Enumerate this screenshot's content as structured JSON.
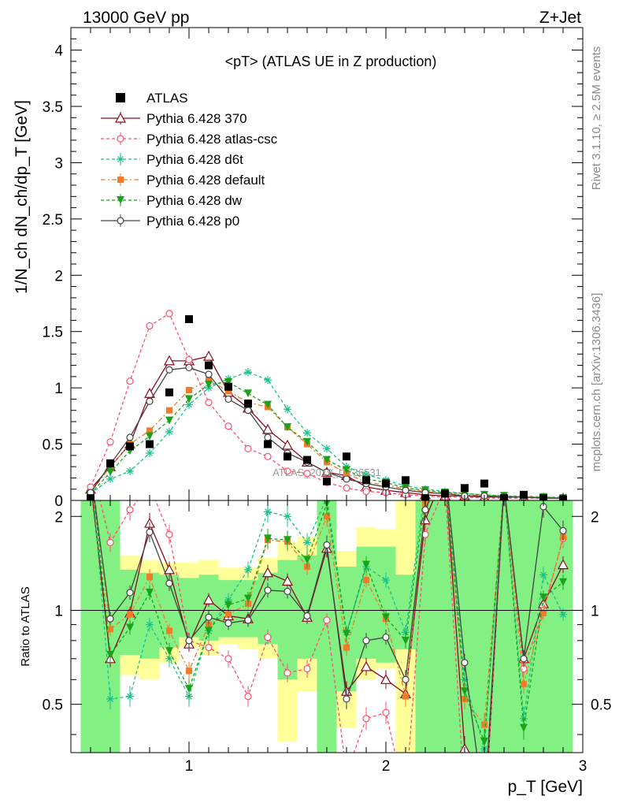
{
  "header": {
    "left": "13000 GeV pp",
    "right": "Z+Jet"
  },
  "side_labels": {
    "rivet": "Rivet 3.1.10, ≥ 2.5M events",
    "mcplots": "mcplots.cern.ch [arXiv:1306.3436]"
  },
  "watermark": "ATLAS_2019_I1736531",
  "chart_data": {
    "type": "line",
    "title": "<pT> (ATLAS UE in Z production)",
    "xlabel": "p_T [GeV]",
    "ylabel": "1/N_ch dN_ch/dp_T [GeV]",
    "ratio_ylabel": "Ratio to ATLAS",
    "xlim": [
      0.4,
      3.0
    ],
    "ylim": [
      0,
      4.2
    ],
    "ratio_ylim": [
      0.35,
      2.25
    ],
    "x_ticks": [
      "1",
      "2",
      "3"
    ],
    "y_ticks": [
      "0",
      "0.5",
      "1",
      "1.5",
      "2",
      "2.5",
      "3",
      "3.5",
      "4"
    ],
    "ratio_ticks": [
      "0.5",
      "1",
      "2"
    ],
    "legend_position": "top-left",
    "x": [
      0.5,
      0.6,
      0.7,
      0.8,
      0.9,
      1.0,
      1.1,
      1.2,
      1.3,
      1.4,
      1.5,
      1.6,
      1.7,
      1.8,
      1.9,
      2.0,
      2.1,
      2.2,
      2.3,
      2.4,
      2.5,
      2.6,
      2.7,
      2.8,
      2.9
    ],
    "data": {
      "name": "ATLAS",
      "color": "#000000",
      "values": [
        0.02,
        0.33,
        0.48,
        0.5,
        0.96,
        1.61,
        1.2,
        1.01,
        0.86,
        0.5,
        0.39,
        0.36,
        0.17,
        0.39,
        0.18,
        0.15,
        0.18,
        0.02,
        0.06,
        0.11,
        0.15,
        0.02,
        0.05,
        0.02,
        0.01
      ]
    },
    "ratio_band_yellow": [
      [
        0.35,
        2.25
      ],
      [
        0.35,
        2.25
      ],
      [
        0.62,
        1.5
      ],
      [
        0.6,
        1.45
      ],
      [
        0.68,
        1.42
      ],
      [
        0.76,
        1.42
      ],
      [
        0.72,
        1.45
      ],
      [
        0.78,
        1.37
      ],
      [
        0.75,
        1.37
      ],
      [
        0.7,
        1.47
      ],
      [
        0.38,
        1.65
      ],
      [
        0.55,
        1.72
      ],
      [
        0.65,
        2.2
      ],
      [
        0.42,
        1.55
      ],
      [
        0.6,
        1.85
      ],
      [
        0.65,
        1.82
      ],
      [
        0.35,
        2.25
      ],
      [
        0.35,
        2.25
      ],
      [
        0.35,
        2.25
      ],
      [
        0.35,
        2.25
      ],
      [
        0.35,
        2.25
      ],
      [
        0.35,
        2.25
      ],
      [
        0.45,
        2.25
      ],
      [
        0.35,
        2.25
      ],
      [
        0.35,
        2.25
      ]
    ],
    "ratio_band_green": [
      [
        0.35,
        2.25
      ],
      [
        0.35,
        2.25
      ],
      [
        0.72,
        1.35
      ],
      [
        0.7,
        1.32
      ],
      [
        0.76,
        1.3
      ],
      [
        0.82,
        1.27
      ],
      [
        0.8,
        1.3
      ],
      [
        0.82,
        1.25
      ],
      [
        0.82,
        1.25
      ],
      [
        0.78,
        1.32
      ],
      [
        0.6,
        1.45
      ],
      [
        0.7,
        1.5
      ],
      [
        0.35,
        2.25
      ],
      [
        0.55,
        1.38
      ],
      [
        0.7,
        1.6
      ],
      [
        0.68,
        1.6
      ],
      [
        0.75,
        1.3
      ],
      [
        0.35,
        2.25
      ],
      [
        0.35,
        2.25
      ],
      [
        0.35,
        2.25
      ],
      [
        0.35,
        2.25
      ],
      [
        0.35,
        2.25
      ],
      [
        0.35,
        2.25
      ],
      [
        0.35,
        2.25
      ],
      [
        0.35,
        2.25
      ]
    ],
    "series": [
      {
        "name": "Pythia 6.428 370",
        "color": "#8b0a1e",
        "dash": "",
        "marker": "triangle-open",
        "values": [
          0.1,
          0.3,
          0.5,
          0.95,
          1.24,
          1.24,
          1.28,
          0.96,
          0.82,
          0.63,
          0.49,
          0.34,
          0.25,
          0.22,
          0.12,
          0.09,
          0.07,
          0.05,
          0.04,
          0.04,
          0.03,
          0.03,
          0.03,
          0.02,
          0.02
        ],
        "ratio": [
          2.6,
          0.7,
          0.98,
          1.9,
          1.35,
          0.78,
          1.08,
          0.96,
          0.94,
          1.32,
          1.24,
          0.95,
          1.58,
          0.55,
          0.66,
          0.6,
          0.54,
          1.95,
          2.8,
          0.36,
          0.2,
          2.5,
          0.7,
          1.05,
          1.4
        ]
      },
      {
        "name": "Pythia 6.428 atlas-csc",
        "color": "#ff4d6d",
        "dash": "4,3",
        "marker": "circle-open",
        "values": [
          0.12,
          0.52,
          1.06,
          1.55,
          1.66,
          1.25,
          0.87,
          0.66,
          0.46,
          0.39,
          0.26,
          0.24,
          0.16,
          0.11,
          0.08,
          0.07,
          0.05,
          0.04,
          0.03,
          0.03,
          0.02,
          0.02,
          0.02,
          0.02,
          0.02
        ],
        "ratio": [
          3.0,
          1.65,
          2.1,
          2.5,
          1.75,
          0.8,
          0.76,
          0.7,
          0.53,
          0.82,
          0.63,
          0.65,
          0.93,
          0.3,
          0.45,
          0.47,
          0.25,
          1.75,
          2.5,
          0.25,
          0.2,
          2.5,
          0.65,
          1.0,
          1.7
        ]
      },
      {
        "name": "Pythia 6.428 d6t",
        "color": "#19c28c",
        "dash": "4,3",
        "marker": "asterisk",
        "values": [
          0.06,
          0.19,
          0.26,
          0.42,
          0.61,
          0.85,
          1.0,
          1.08,
          1.14,
          1.07,
          0.81,
          0.6,
          0.46,
          0.3,
          0.23,
          0.18,
          0.13,
          0.1,
          0.08,
          0.06,
          0.05,
          0.04,
          0.04,
          0.03,
          0.03
        ],
        "ratio": [
          3.0,
          0.52,
          0.53,
          0.9,
          0.7,
          0.53,
          0.86,
          1.08,
          1.35,
          2.07,
          2.0,
          1.65,
          2.3,
          0.85,
          1.38,
          1.25,
          0.85,
          2.5,
          2.8,
          0.6,
          0.36,
          2.5,
          0.45,
          1.3,
          0.97
        ]
      },
      {
        "name": "Pythia 6.428 default",
        "color": "#f27b29",
        "dash": "6,3,2,3",
        "marker": "square",
        "values": [
          0.07,
          0.3,
          0.5,
          0.62,
          0.8,
          0.98,
          1.07,
          0.97,
          0.87,
          0.83,
          0.65,
          0.5,
          0.34,
          0.24,
          0.16,
          0.14,
          0.1,
          0.08,
          0.06,
          0.05,
          0.04,
          0.04,
          0.03,
          0.03,
          0.02
        ],
        "ratio": [
          3.0,
          0.87,
          0.97,
          1.28,
          0.86,
          0.64,
          0.9,
          0.97,
          1.05,
          1.68,
          1.66,
          1.38,
          2.0,
          0.76,
          1.25,
          0.94,
          0.53,
          2.2,
          2.7,
          0.52,
          0.43,
          2.5,
          0.58,
          0.98,
          1.72
        ]
      },
      {
        "name": "Pythia 6.428 dw",
        "color": "#1aa31a",
        "dash": "4,3",
        "marker": "triangle-down",
        "values": [
          0.06,
          0.25,
          0.44,
          0.57,
          0.71,
          0.9,
          1.03,
          1.05,
          0.95,
          0.85,
          0.65,
          0.52,
          0.36,
          0.27,
          0.19,
          0.16,
          0.11,
          0.09,
          0.07,
          0.06,
          0.05,
          0.04,
          0.03,
          0.03,
          0.02
        ],
        "ratio": [
          3.0,
          0.72,
          0.88,
          1.14,
          0.74,
          0.56,
          0.86,
          1.04,
          1.09,
          1.7,
          1.68,
          1.45,
          2.2,
          0.84,
          1.4,
          0.95,
          0.8,
          2.3,
          2.75,
          0.55,
          0.38,
          2.5,
          0.42,
          1.1,
          1.23
        ]
      },
      {
        "name": "Pythia 6.428 p0",
        "color": "#444444",
        "dash": "",
        "marker": "circle-open",
        "values": [
          0.07,
          0.32,
          0.56,
          0.88,
          1.16,
          1.18,
          1.12,
          0.9,
          0.8,
          0.56,
          0.42,
          0.34,
          0.25,
          0.19,
          0.15,
          0.12,
          0.09,
          0.07,
          0.06,
          0.04,
          0.04,
          0.03,
          0.03,
          0.02,
          0.02
        ],
        "ratio": [
          2.8,
          0.94,
          1.14,
          1.78,
          1.22,
          0.8,
          0.95,
          0.91,
          0.93,
          1.16,
          1.15,
          0.96,
          1.62,
          0.52,
          0.8,
          0.82,
          0.6,
          2.1,
          2.9,
          0.68,
          0.23,
          2.5,
          0.7,
          2.15,
          1.8
        ]
      }
    ]
  }
}
